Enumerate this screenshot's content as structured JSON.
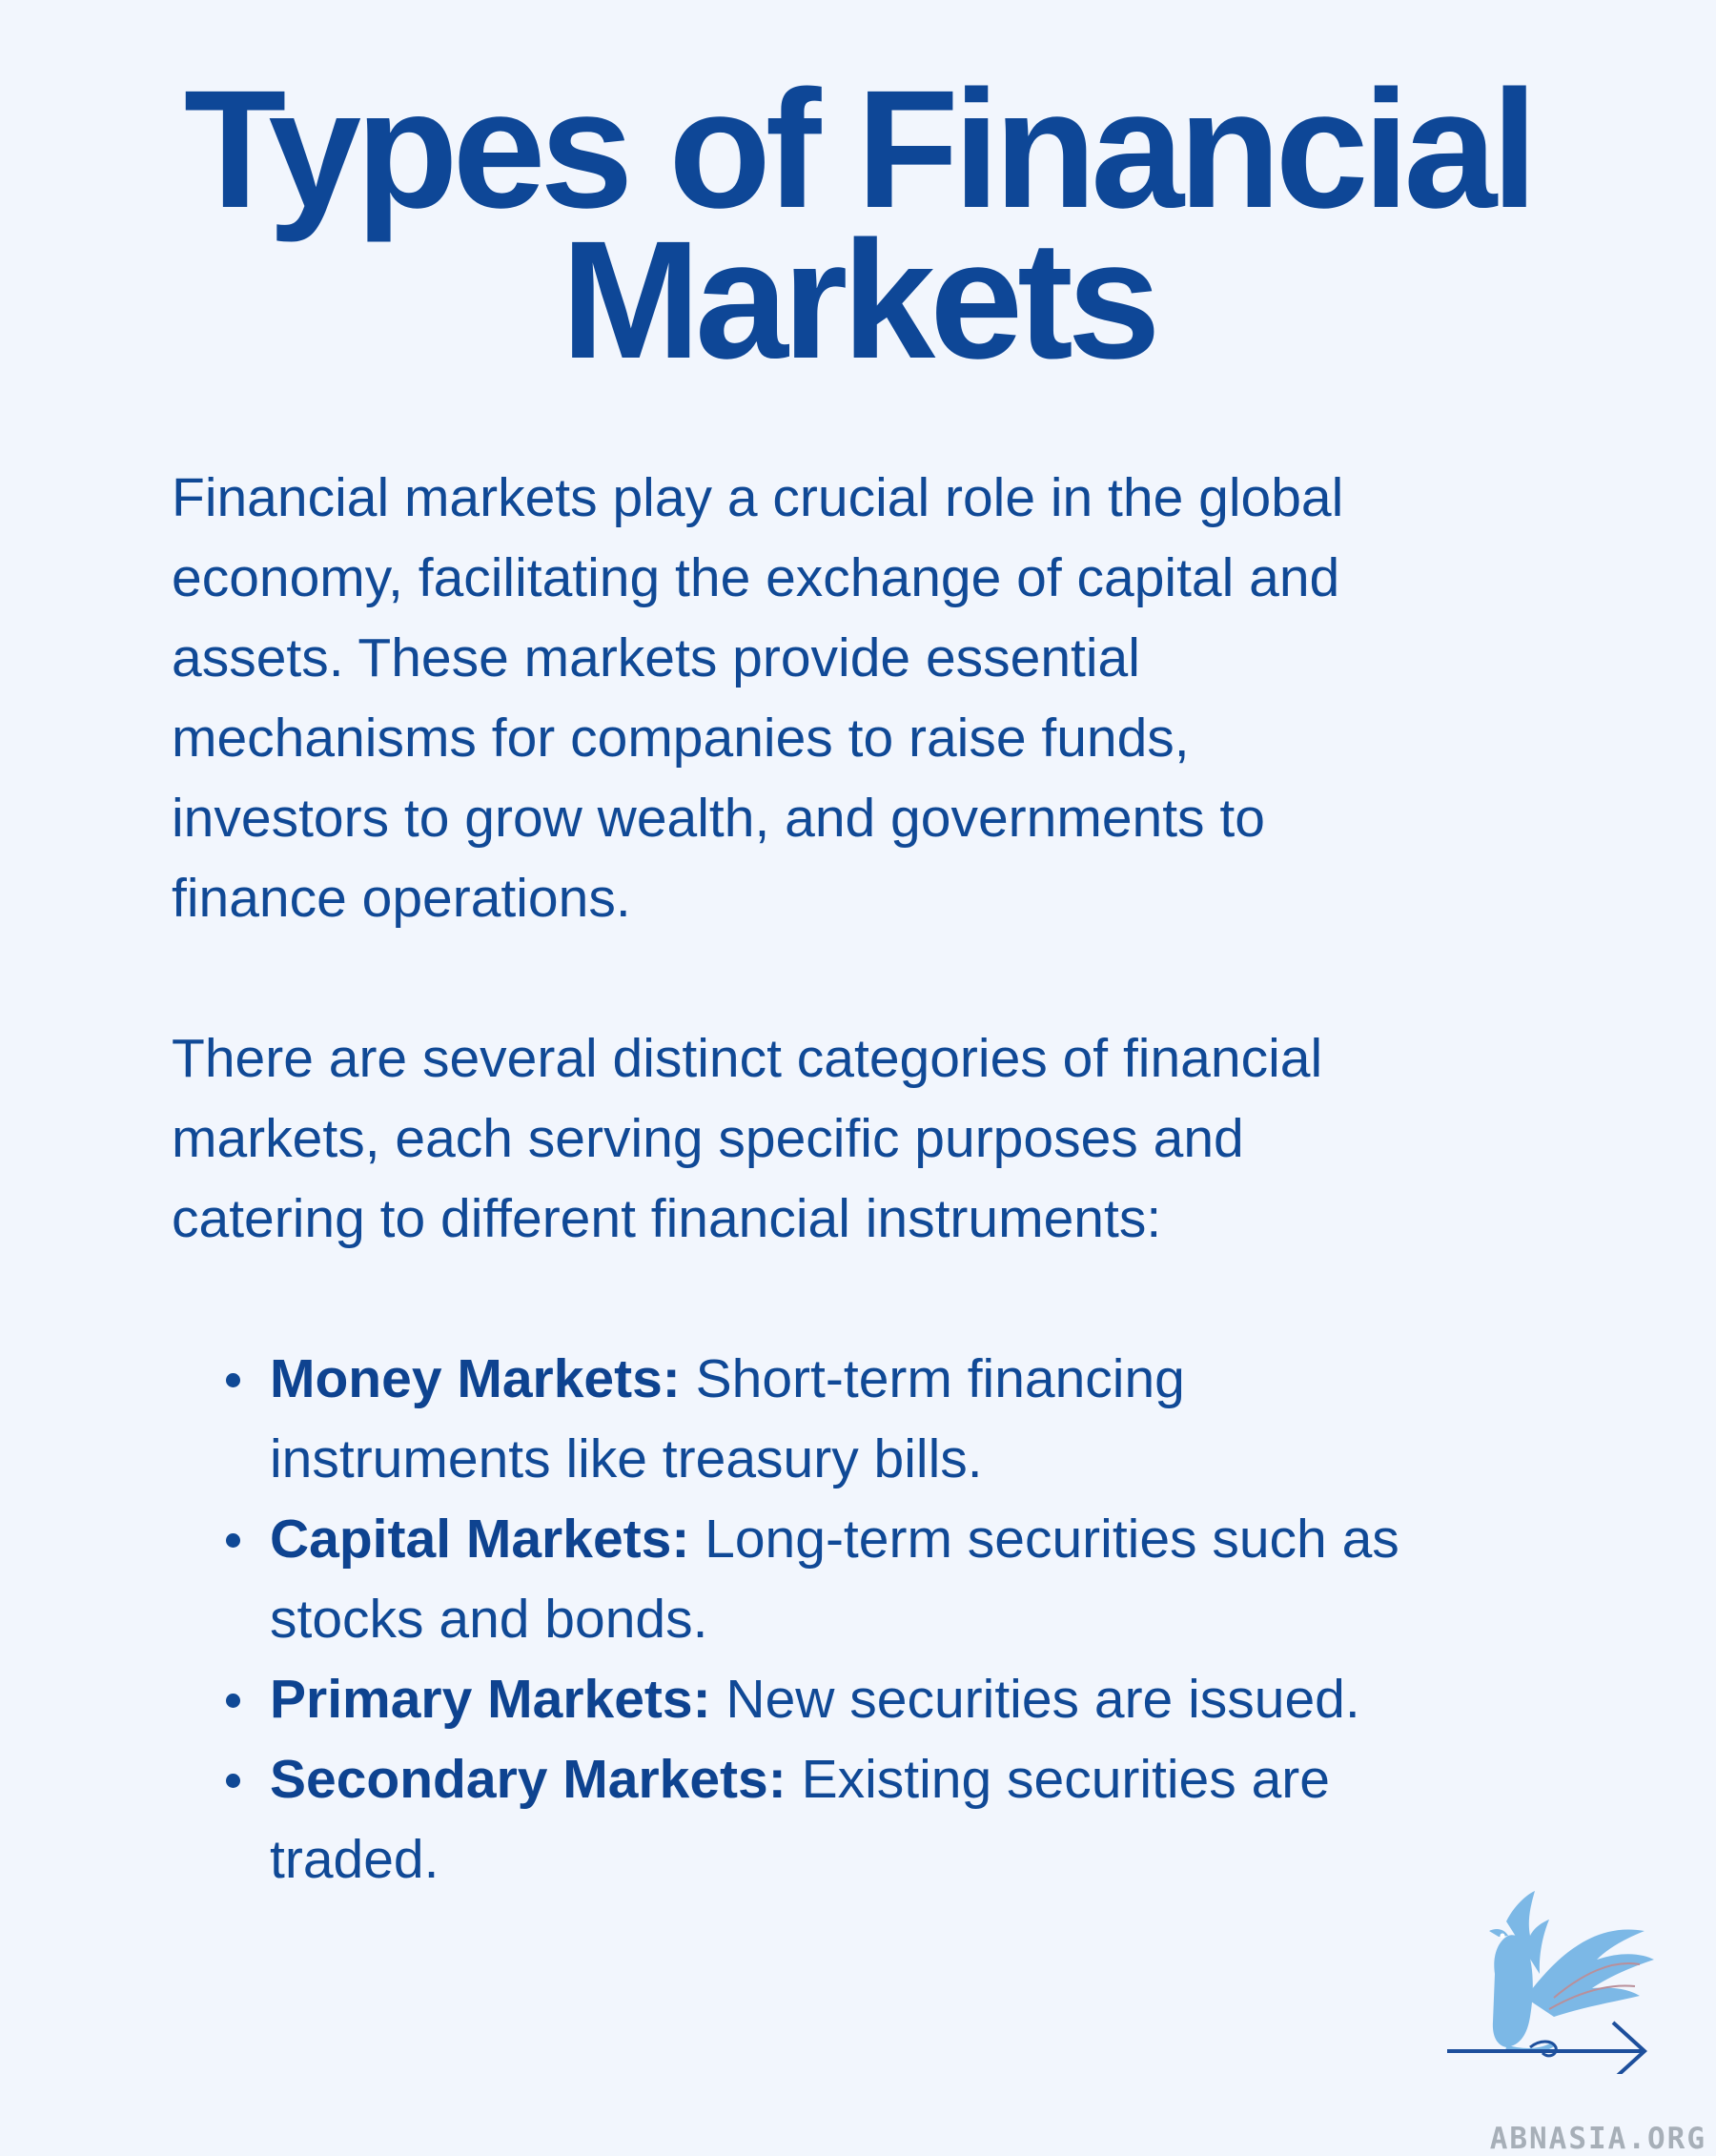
{
  "title": {
    "line1": "Types of Financial",
    "line2": "Markets"
  },
  "intro": {
    "lines": [
      "Financial markets play a crucial role in the global",
      "economy, facilitating the exchange of capital and",
      "assets. These markets provide essential",
      "mechanisms for companies to raise funds,",
      "investors to grow wealth, and governments to",
      "finance operations."
    ]
  },
  "categories_intro": {
    "lines": [
      "There are several distinct categories of financial",
      "markets, each serving specific purposes and",
      "catering to different financial instruments:"
    ]
  },
  "bullets": [
    {
      "term": "Money Markets:",
      "line1_rest": " Short-term financing",
      "line2": "instruments like treasury bills."
    },
    {
      "term": "Capital Markets:",
      "line1_rest": " Long-term securities such as",
      "line2": "stocks and bonds."
    },
    {
      "term": "Primary Markets:",
      "line1_rest": " New securities are issued.",
      "line2": ""
    },
    {
      "term": "Secondary Markets:",
      "line1_rest": " Existing securities are",
      "line2": "traded."
    }
  ],
  "logo": {
    "icon": "griffin-arrow-logo",
    "wordmark": "ABNASIA.ORG",
    "colors": {
      "griffin": "#7cb8e6",
      "arrow": "#1d4f9c"
    }
  },
  "colors": {
    "background": "#f2f6fd",
    "title": "#0e4797",
    "body_text": "#104996"
  }
}
